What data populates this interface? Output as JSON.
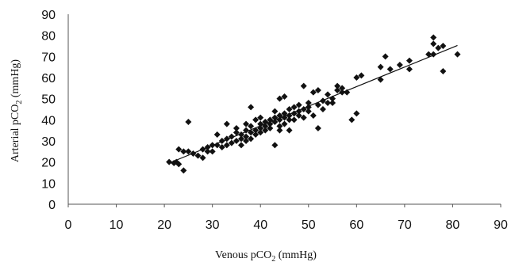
{
  "chart_data": {
    "type": "scatter",
    "title": "",
    "xlabel": "Venous pCO",
    "xlabel_sub": "2",
    "xlabel_unit": " (mmHg)",
    "ylabel": "Arterial pCO",
    "ylabel_sub": "2",
    "ylabel_unit": " (mmHg)",
    "xlim": [
      0,
      90
    ],
    "ylim": [
      0,
      90
    ],
    "xticks": [
      0,
      10,
      20,
      30,
      40,
      50,
      60,
      70,
      80,
      90
    ],
    "yticks": [
      0,
      10,
      20,
      30,
      40,
      50,
      60,
      70,
      80,
      90
    ],
    "grid": false,
    "legend": "none",
    "trendline": {
      "x": [
        21,
        81
      ],
      "y": [
        19.5,
        75.2
      ]
    },
    "points": [
      [
        21,
        20
      ],
      [
        22,
        19.5
      ],
      [
        22.5,
        20
      ],
      [
        23,
        19
      ],
      [
        23,
        26
      ],
      [
        24,
        25
      ],
      [
        24,
        16
      ],
      [
        25,
        25
      ],
      [
        25,
        39
      ],
      [
        26,
        24
      ],
      [
        27,
        23
      ],
      [
        28,
        22
      ],
      [
        28,
        26
      ],
      [
        29,
        27
      ],
      [
        29,
        25
      ],
      [
        30,
        28
      ],
      [
        30,
        25
      ],
      [
        31,
        28
      ],
      [
        31,
        33
      ],
      [
        32,
        30
      ],
      [
        32,
        27
      ],
      [
        33,
        28
      ],
      [
        33,
        31
      ],
      [
        33,
        38
      ],
      [
        34,
        29
      ],
      [
        34,
        32
      ],
      [
        35,
        30
      ],
      [
        35,
        34
      ],
      [
        35,
        36
      ],
      [
        36,
        28
      ],
      [
        36,
        31
      ],
      [
        36,
        33
      ],
      [
        37,
        32
      ],
      [
        37,
        35
      ],
      [
        37,
        38
      ],
      [
        37,
        30
      ],
      [
        38,
        34
      ],
      [
        38,
        37
      ],
      [
        38,
        46
      ],
      [
        38,
        31
      ],
      [
        39,
        35
      ],
      [
        39,
        33
      ],
      [
        39,
        40
      ],
      [
        40,
        36
      ],
      [
        40,
        38
      ],
      [
        40,
        41
      ],
      [
        40,
        34
      ],
      [
        41,
        37
      ],
      [
        41,
        39
      ],
      [
        41,
        35
      ],
      [
        42,
        40
      ],
      [
        42,
        38
      ],
      [
        42,
        36
      ],
      [
        43,
        41
      ],
      [
        43,
        44
      ],
      [
        43,
        39
      ],
      [
        43,
        28
      ],
      [
        44,
        37
      ],
      [
        44,
        40
      ],
      [
        44,
        42
      ],
      [
        44,
        50
      ],
      [
        44,
        35
      ],
      [
        45,
        43
      ],
      [
        45,
        41
      ],
      [
        45,
        38
      ],
      [
        45,
        51
      ],
      [
        46,
        42
      ],
      [
        46,
        45
      ],
      [
        46,
        40
      ],
      [
        46,
        35
      ],
      [
        47,
        43
      ],
      [
        47,
        40
      ],
      [
        47,
        46
      ],
      [
        48,
        44
      ],
      [
        48,
        47
      ],
      [
        48,
        42
      ],
      [
        49,
        41
      ],
      [
        49,
        45
      ],
      [
        49,
        56
      ],
      [
        50,
        46
      ],
      [
        50,
        44
      ],
      [
        50,
        48
      ],
      [
        51,
        53
      ],
      [
        51,
        42
      ],
      [
        52,
        47
      ],
      [
        52,
        54
      ],
      [
        52,
        36
      ],
      [
        53,
        45
      ],
      [
        53,
        49
      ],
      [
        54,
        48
      ],
      [
        54,
        52
      ],
      [
        55,
        50
      ],
      [
        55,
        48
      ],
      [
        56,
        54
      ],
      [
        56,
        56
      ],
      [
        57,
        55
      ],
      [
        57,
        53
      ],
      [
        58,
        53
      ],
      [
        59,
        40
      ],
      [
        60,
        43
      ],
      [
        60,
        60
      ],
      [
        61,
        61
      ],
      [
        65,
        59
      ],
      [
        65,
        65
      ],
      [
        66,
        70
      ],
      [
        67,
        64
      ],
      [
        69,
        66
      ],
      [
        71,
        64
      ],
      [
        71,
        68
      ],
      [
        75,
        71
      ],
      [
        76,
        71
      ],
      [
        76,
        76
      ],
      [
        76,
        79
      ],
      [
        77,
        74
      ],
      [
        78,
        63
      ],
      [
        78,
        75
      ],
      [
        81,
        71
      ]
    ]
  }
}
